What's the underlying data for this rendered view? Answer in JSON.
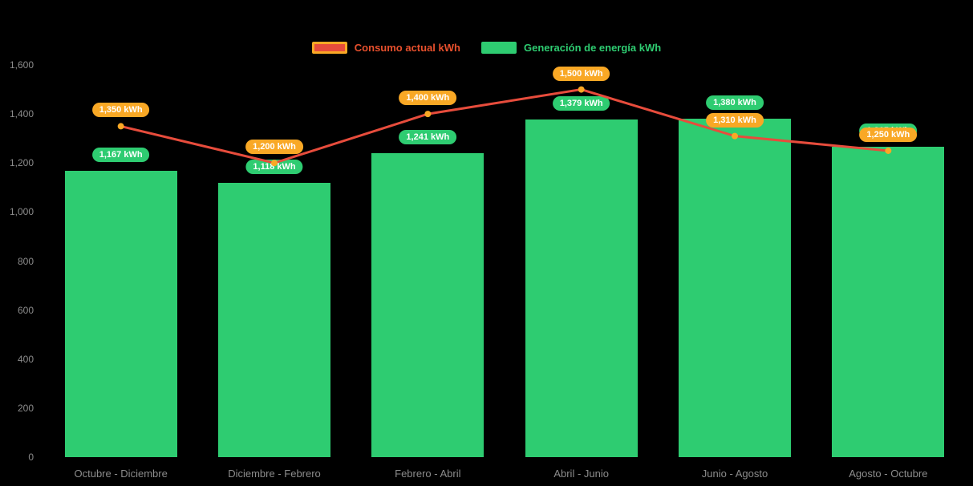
{
  "chart_data": {
    "type": "bar",
    "title": "",
    "categories": [
      "Octubre - Diciembre",
      "Diciembre - Febrero",
      "Febrero - Abril",
      "Abril - Junio",
      "Junio - Agosto",
      "Agosto - Octubre"
    ],
    "series": [
      {
        "name": "Consumo actual kWh",
        "type": "line",
        "color": "#e74c3c",
        "marker_color": "#f9a825",
        "label_bg": "#f9a825",
        "values": [
          1350,
          1200,
          1400,
          1500,
          1310,
          1250
        ],
        "labels": [
          "1,350 kWh",
          "1,200 kWh",
          "1,400 kWh",
          "1,500 kWh",
          "1,310 kWh",
          "1,250 kWh"
        ]
      },
      {
        "name": "Generación de energía kWh",
        "type": "bar",
        "color": "#2ecc71",
        "label_bg": "#2ecc71",
        "values": [
          1167,
          1118,
          1241,
          1379,
          1380,
          1265
        ],
        "labels": [
          "1,167 kWh",
          "1,118 kWh",
          "1,241 kWh",
          "1,379 kWh",
          "1,380 kWh",
          "1,265 kWh"
        ]
      }
    ],
    "ylim": [
      0,
      1600
    ],
    "yticks": [
      0,
      200,
      400,
      600,
      800,
      1000,
      1200,
      1400,
      1600
    ],
    "ytick_labels": [
      "0",
      "200",
      "400",
      "600",
      "800",
      "1,000",
      "1,200",
      "1,400",
      "1,600"
    ],
    "xlabel": "",
    "ylabel": "",
    "grid": false,
    "legend_position": "top-center",
    "background": "#000000",
    "axis_label_color": "#8c8c8c"
  }
}
